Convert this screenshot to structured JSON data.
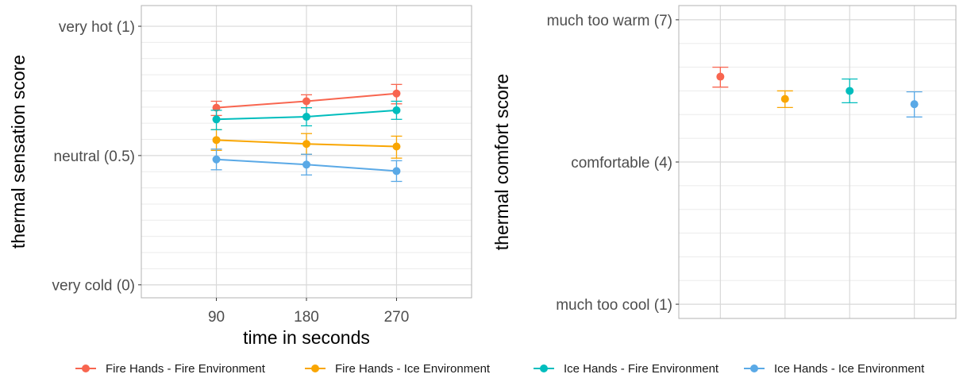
{
  "chart_data": [
    {
      "type": "line",
      "xlabel": "time in seconds",
      "ylabel": "thermal sensation score",
      "x": [
        90,
        180,
        270
      ],
      "x_ticks": [
        "90",
        "180",
        "270"
      ],
      "xlim": [
        15,
        345
      ],
      "ylim": [
        -0.05,
        1.08
      ],
      "y_ticks": [
        {
          "value": 1,
          "label": "very hot (1)"
        },
        {
          "value": 0.5,
          "label": "neutral (0.5)"
        },
        {
          "value": 0,
          "label": "very cold (0)"
        }
      ],
      "grid": true,
      "series": [
        {
          "name": "Fire Hands - Fire Environment",
          "color": "#F8654F",
          "values": [
            0.685,
            0.71,
            0.74
          ],
          "err_low": [
            0.655,
            0.685,
            0.7
          ],
          "err_high": [
            0.71,
            0.735,
            0.775
          ]
        },
        {
          "name": "Fire Hands - Ice Environment",
          "color": "#F9A602",
          "values": [
            0.56,
            0.545,
            0.535
          ],
          "err_low": [
            0.52,
            0.505,
            0.49
          ],
          "err_high": [
            0.6,
            0.585,
            0.575
          ]
        },
        {
          "name": "Ice Hands - Fire Environment",
          "color": "#00BDBD",
          "values": [
            0.64,
            0.65,
            0.675
          ],
          "err_low": [
            0.6,
            0.615,
            0.64
          ],
          "err_high": [
            0.675,
            0.685,
            0.71
          ]
        },
        {
          "name": "Ice Hands - Ice Environment",
          "color": "#5AA9E6",
          "values": [
            0.485,
            0.465,
            0.44
          ],
          "err_low": [
            0.445,
            0.425,
            0.4
          ],
          "err_high": [
            0.525,
            0.505,
            0.48
          ]
        }
      ]
    },
    {
      "type": "scatter",
      "xlabel": "",
      "ylabel": "thermal comfort score",
      "ylim": [
        0.7,
        7.3
      ],
      "y_ticks": [
        {
          "value": 7,
          "label": "much too warm (7)"
        },
        {
          "value": 4,
          "label": "comfortable (4)"
        },
        {
          "value": 1,
          "label": "much too cool (1)"
        }
      ],
      "grid": true,
      "series": [
        {
          "name": "Fire Hands - Fire Environment",
          "color": "#F8654F",
          "value": 5.8,
          "err_low": 5.58,
          "err_high": 6.0
        },
        {
          "name": "Fire Hands - Ice Environment",
          "color": "#F9A602",
          "value": 5.33,
          "err_low": 5.15,
          "err_high": 5.5
        },
        {
          "name": "Ice Hands - Fire Environment",
          "color": "#00BDBD",
          "value": 5.5,
          "err_low": 5.25,
          "err_high": 5.75
        },
        {
          "name": "Ice Hands - Ice Environment",
          "color": "#5AA9E6",
          "value": 5.22,
          "err_low": 4.95,
          "err_high": 5.48
        }
      ]
    }
  ],
  "legend": {
    "placement": "bottom",
    "items": [
      {
        "label": "Fire Hands - Fire Environment",
        "color": "#F8654F"
      },
      {
        "label": "Fire Hands - Ice Environment",
        "color": "#F9A602"
      },
      {
        "label": "Ice Hands - Fire Environment",
        "color": "#00BDBD"
      },
      {
        "label": "Ice Hands - Ice Environment",
        "color": "#5AA9E6"
      }
    ]
  }
}
